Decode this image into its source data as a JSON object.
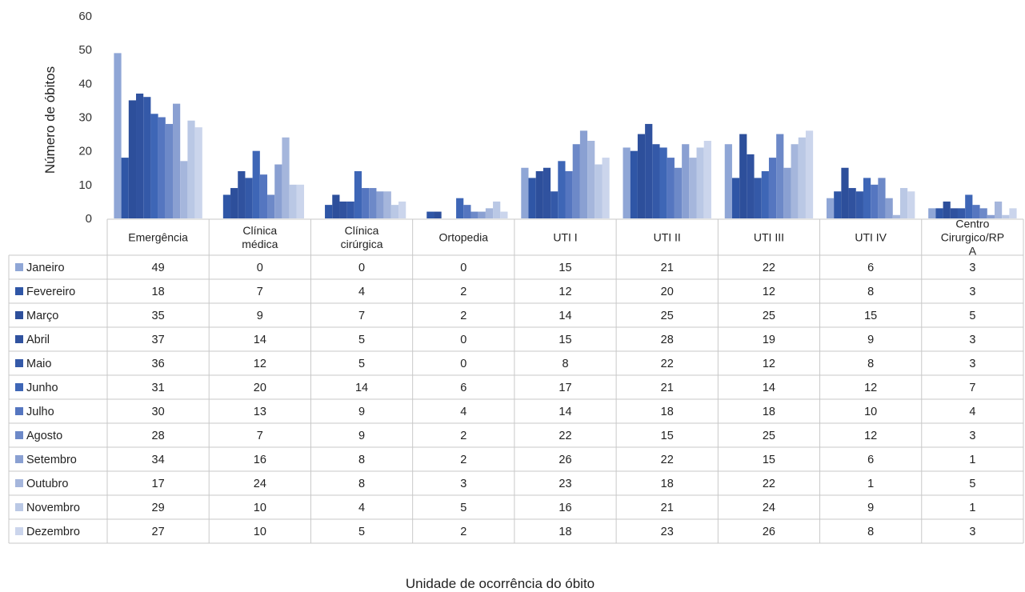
{
  "chart_data": {
    "type": "bar",
    "xlabel": "Unidade de ocorrência do óbito",
    "ylabel": "Número de óbitos",
    "ylim": [
      0,
      60
    ],
    "yticks": [
      0,
      10,
      20,
      30,
      40,
      50,
      60
    ],
    "grid": false,
    "legend": "data-table",
    "categories": [
      "Emergência",
      "Clínica médica",
      "Clínica cirúrgica",
      "Ortopedia",
      "UTI I",
      "UTI II",
      "UTI III",
      "UTI IV",
      "Centro Cirurgico/RPA"
    ],
    "category_lines": [
      [
        "Emergência"
      ],
      [
        "Clínica",
        "médica"
      ],
      [
        "Clínica",
        "cirúrgica"
      ],
      [
        "Ortopedia"
      ],
      [
        "UTI I"
      ],
      [
        "UTI II"
      ],
      [
        "UTI III"
      ],
      [
        "UTI IV"
      ],
      [
        "Centro",
        "Cirurgico/RP",
        "A"
      ]
    ],
    "series": [
      {
        "name": "Janeiro",
        "color": "#8fa6d6",
        "values": [
          49,
          0,
          0,
          0,
          15,
          21,
          22,
          6,
          3
        ]
      },
      {
        "name": "Fevereiro",
        "color": "#2f56a6",
        "values": [
          18,
          7,
          4,
          2,
          12,
          20,
          12,
          8,
          3
        ]
      },
      {
        "name": "Março",
        "color": "#2d4f9b",
        "values": [
          35,
          9,
          7,
          2,
          14,
          25,
          25,
          15,
          5
        ]
      },
      {
        "name": "Abril",
        "color": "#30529f",
        "values": [
          37,
          14,
          5,
          0,
          15,
          28,
          19,
          9,
          3
        ]
      },
      {
        "name": "Maio",
        "color": "#3459a8",
        "values": [
          36,
          12,
          5,
          0,
          8,
          22,
          12,
          8,
          3
        ]
      },
      {
        "name": "Junho",
        "color": "#3e66b6",
        "values": [
          31,
          20,
          14,
          6,
          17,
          21,
          14,
          12,
          7
        ]
      },
      {
        "name": "Julho",
        "color": "#5576c0",
        "values": [
          30,
          13,
          9,
          4,
          14,
          18,
          18,
          10,
          4
        ]
      },
      {
        "name": "Agosto",
        "color": "#6d89c8",
        "values": [
          28,
          7,
          9,
          2,
          22,
          15,
          25,
          12,
          3
        ]
      },
      {
        "name": "Setembro",
        "color": "#8aa0d2",
        "values": [
          34,
          16,
          8,
          2,
          26,
          22,
          15,
          6,
          1
        ]
      },
      {
        "name": "Outubro",
        "color": "#a5b6dc",
        "values": [
          17,
          24,
          8,
          3,
          23,
          18,
          22,
          1,
          5
        ]
      },
      {
        "name": "Novembro",
        "color": "#bac8e5",
        "values": [
          29,
          10,
          4,
          5,
          16,
          21,
          24,
          9,
          1
        ]
      },
      {
        "name": "Dezembro",
        "color": "#cbd5ec",
        "values": [
          27,
          10,
          5,
          2,
          18,
          23,
          26,
          8,
          3
        ]
      }
    ]
  }
}
